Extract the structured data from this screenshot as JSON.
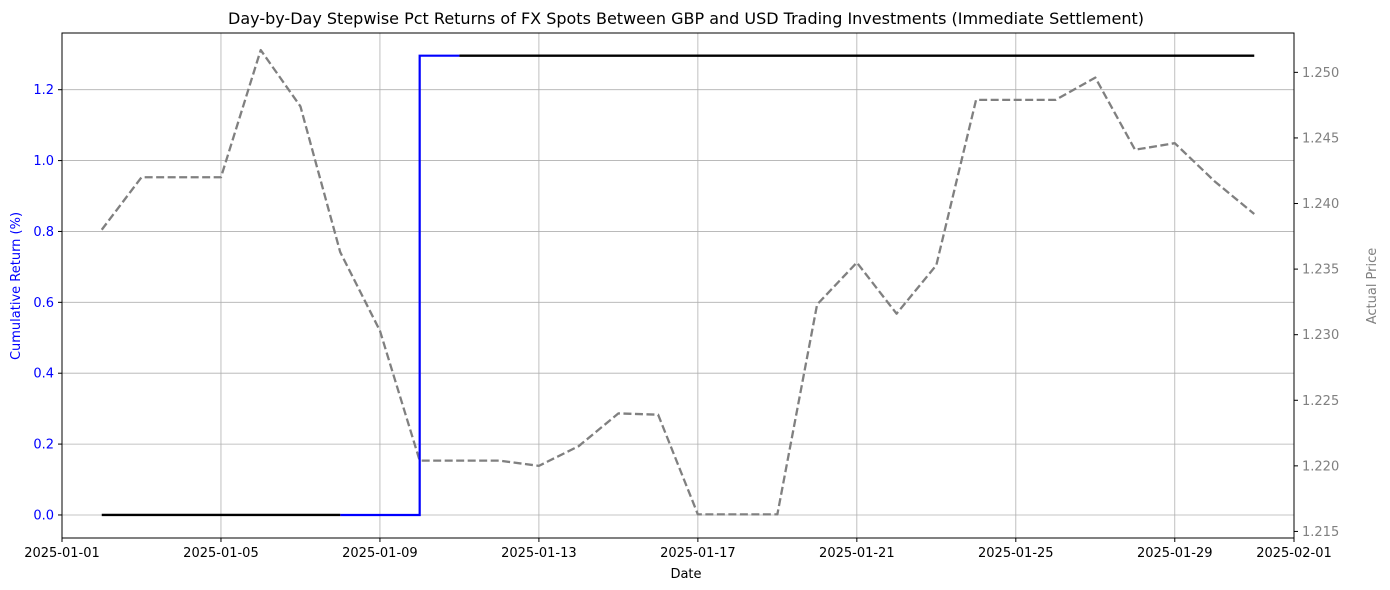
{
  "chart_data": {
    "type": "line",
    "title": "Day-by-Day Stepwise Pct Returns of FX Spots Between GBP and USD Trading Investments (Immediate Settlement)",
    "xlabel": "Date",
    "ylabel": "Cumulative Return (%)",
    "y2label": "Actual Price",
    "xlim": [
      "2025-01-01",
      "2025-02-01"
    ],
    "ylim": [
      -0.065,
      1.36
    ],
    "y2lim": [
      1.2145,
      1.253
    ],
    "xticks": [
      "2025-01-01",
      "2025-01-05",
      "2025-01-09",
      "2025-01-13",
      "2025-01-17",
      "2025-01-21",
      "2025-01-25",
      "2025-01-29",
      "2025-02-01"
    ],
    "yticks": [
      "0.0",
      "0.2",
      "0.4",
      "0.6",
      "0.8",
      "1.0",
      "1.2"
    ],
    "y2ticks": [
      "1.215",
      "1.220",
      "1.225",
      "1.230",
      "1.235",
      "1.240",
      "1.245",
      "1.250"
    ],
    "grid": true,
    "colors": {
      "left_axis": "#0000ff",
      "right_axis": "#808080",
      "cum_return": "#0000ff",
      "step": "#000000",
      "price": "#808080"
    },
    "series": [
      {
        "style": "step-post",
        "color": "#0000ff",
        "axis": "left",
        "points": [
          [
            "2025-01-08",
            0.0
          ],
          [
            "2025-01-09",
            0.0
          ],
          [
            "2025-01-10",
            1.296
          ],
          [
            "2025-01-11",
            1.296
          ]
        ]
      },
      {
        "style": "step-post",
        "color": "#000000",
        "axis": "left",
        "segments": [
          [
            [
              "2025-01-02",
              0.0
            ],
            [
              "2025-01-08",
              0.0
            ]
          ],
          [
            [
              "2025-01-11",
              1.296
            ],
            [
              "2025-01-31",
              1.296
            ]
          ]
        ]
      },
      {
        "style": "dashed",
        "color": "#808080",
        "axis": "right",
        "points": [
          [
            "2025-01-02",
            1.238
          ],
          [
            "2025-01-03",
            1.242
          ],
          [
            "2025-01-04",
            1.242
          ],
          [
            "2025-01-05",
            1.242
          ],
          [
            "2025-01-06",
            1.2517
          ],
          [
            "2025-01-07",
            1.2474
          ],
          [
            "2025-01-08",
            1.2363
          ],
          [
            "2025-01-09",
            1.2303
          ],
          [
            "2025-01-10",
            1.2204
          ],
          [
            "2025-01-11",
            1.2204
          ],
          [
            "2025-01-12",
            1.2204
          ],
          [
            "2025-01-13",
            1.22
          ],
          [
            "2025-01-14",
            1.2215
          ],
          [
            "2025-01-15",
            1.224
          ],
          [
            "2025-01-16",
            1.2239
          ],
          [
            "2025-01-17",
            1.2163
          ],
          [
            "2025-01-18",
            1.2163
          ],
          [
            "2025-01-19",
            1.2163
          ],
          [
            "2025-01-20",
            1.2323
          ],
          [
            "2025-01-21",
            1.2355
          ],
          [
            "2025-01-22",
            1.2316
          ],
          [
            "2025-01-23",
            1.2353
          ],
          [
            "2025-01-24",
            1.2479
          ],
          [
            "2025-01-25",
            1.2479
          ],
          [
            "2025-01-26",
            1.2479
          ],
          [
            "2025-01-27",
            1.2496
          ],
          [
            "2025-01-28",
            1.2441
          ],
          [
            "2025-01-29",
            1.2446
          ],
          [
            "2025-01-30",
            1.2417
          ],
          [
            "2025-01-31",
            1.2392
          ]
        ]
      }
    ]
  }
}
